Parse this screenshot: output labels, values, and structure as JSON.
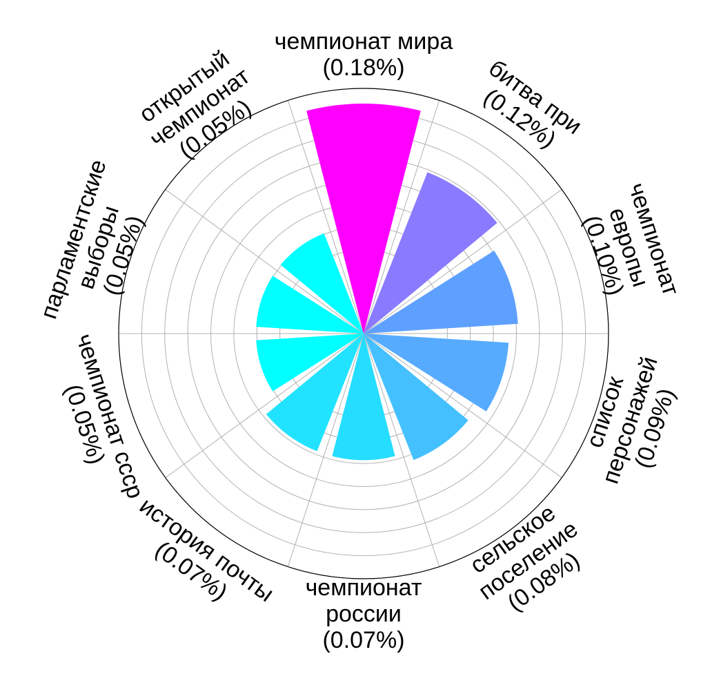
{
  "chart_data": {
    "type": "polar-bar",
    "title": "",
    "grid": true,
    "categories": [
      {
        "lines": [
          "чемпионат мира",
          "(0.18%)"
        ],
        "value": 0.18,
        "color": "#ff00ff"
      },
      {
        "lines": [
          "битва при",
          "(0.12%)"
        ],
        "value": 0.12,
        "color": "#8a7aff"
      },
      {
        "lines": [
          "чемпионат",
          "европы",
          "(0.10%)"
        ],
        "value": 0.1,
        "color": "#5ea0ff"
      },
      {
        "lines": [
          "список",
          "персонажей",
          "(0.09%)"
        ],
        "value": 0.09,
        "color": "#56abff"
      },
      {
        "lines": [
          "сельское",
          "поселение",
          "(0.08%)"
        ],
        "value": 0.08,
        "color": "#45c0ff"
      },
      {
        "lines": [
          "чемпионат",
          "россии",
          "(0.07%)"
        ],
        "value": 0.07,
        "color": "#25ddff"
      },
      {
        "lines": [
          "история почты",
          "(0.07%)"
        ],
        "value": 0.07,
        "color": "#22e3ff"
      },
      {
        "lines": [
          "чемпионат ссср",
          "(0.05%)"
        ],
        "value": 0.05,
        "color": "#00ffff"
      },
      {
        "lines": [
          "парламентские",
          "выборы",
          "(0.05%)"
        ],
        "value": 0.05,
        "color": "#00ffff"
      },
      {
        "lines": [
          "открытый",
          "чемпионат",
          "(0.05%)"
        ],
        "value": 0.05,
        "color": "#00ffff"
      }
    ]
  }
}
